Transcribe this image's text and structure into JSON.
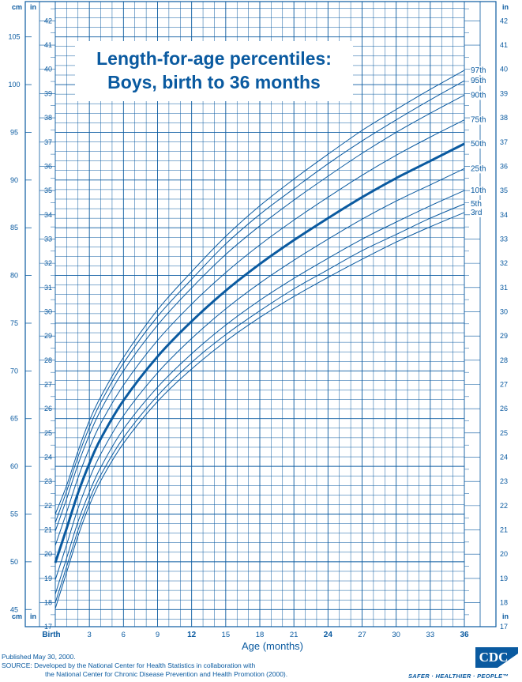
{
  "chart_data": {
    "type": "line",
    "title_line1": "Length-for-age percentiles:",
    "title_line2": "Boys, birth to 36 months",
    "xlabel": "Age (months)",
    "xlim": [
      0,
      36
    ],
    "x_tick_labels": [
      {
        "value": 0,
        "label": "Birth",
        "bold": true
      },
      {
        "value": 3,
        "label": "3",
        "bold": false
      },
      {
        "value": 6,
        "label": "6",
        "bold": false
      },
      {
        "value": 9,
        "label": "9",
        "bold": false
      },
      {
        "value": 12,
        "label": "12",
        "bold": true
      },
      {
        "value": 15,
        "label": "15",
        "bold": false
      },
      {
        "value": 18,
        "label": "18",
        "bold": false
      },
      {
        "value": 21,
        "label": "21",
        "bold": false
      },
      {
        "value": 24,
        "label": "24",
        "bold": true
      },
      {
        "value": 27,
        "label": "27",
        "bold": false
      },
      {
        "value": 30,
        "label": "30",
        "bold": false
      },
      {
        "value": 33,
        "label": "33",
        "bold": false
      },
      {
        "value": 36,
        "label": "36",
        "bold": true
      }
    ],
    "y_cm_label": "cm",
    "y_in_label": "in",
    "y_cm_ticks": [
      45,
      50,
      55,
      60,
      65,
      70,
      75,
      80,
      85,
      90,
      95,
      100,
      105
    ],
    "y_in_ticks": [
      17,
      18,
      19,
      20,
      21,
      22,
      23,
      24,
      25,
      26,
      27,
      28,
      29,
      30,
      31,
      32,
      33,
      34,
      35,
      36,
      37,
      38,
      39,
      40,
      41,
      42
    ],
    "ylim_cm": [
      43.2,
      108.7
    ],
    "x": [
      0,
      1,
      2,
      3,
      4,
      6,
      9,
      12,
      15,
      18,
      21,
      24,
      27,
      30,
      33,
      36
    ],
    "series": [
      {
        "name": "97th",
        "bold": false,
        "values": [
          55.0,
          58.0,
          61.6,
          64.8,
          67.3,
          71.4,
          76.4,
          80.4,
          84.1,
          87.3,
          90.1,
          92.7,
          95.2,
          97.4,
          99.5,
          101.5
        ]
      },
      {
        "name": "95th",
        "bold": false,
        "values": [
          54.1,
          57.4,
          61.0,
          64.1,
          66.7,
          70.8,
          75.7,
          79.6,
          83.3,
          86.4,
          89.1,
          91.7,
          94.1,
          96.3,
          98.4,
          100.4
        ]
      },
      {
        "name": "90th",
        "bold": false,
        "values": [
          53.2,
          56.6,
          60.2,
          63.3,
          65.9,
          70.0,
          74.8,
          78.7,
          82.2,
          85.2,
          87.9,
          90.4,
          92.8,
          95.0,
          97.0,
          98.9
        ]
      },
      {
        "name": "75th",
        "bold": false,
        "values": [
          51.7,
          55.2,
          58.8,
          61.9,
          64.5,
          68.5,
          73.2,
          77.0,
          80.3,
          83.2,
          85.8,
          88.2,
          90.5,
          92.6,
          94.5,
          96.3
        ]
      },
      {
        "name": "50th",
        "bold": true,
        "values": [
          49.9,
          53.5,
          57.2,
          60.3,
          62.9,
          66.9,
          71.5,
          75.2,
          78.4,
          81.2,
          83.7,
          86.0,
          88.2,
          90.2,
          92.0,
          93.8
        ]
      },
      {
        "name": "25th",
        "bold": false,
        "values": [
          48.1,
          51.8,
          55.6,
          58.7,
          61.3,
          65.3,
          69.8,
          73.4,
          76.5,
          79.2,
          81.6,
          83.8,
          85.9,
          87.8,
          89.5,
          91.2
        ]
      },
      {
        "name": "10th",
        "bold": false,
        "values": [
          46.6,
          50.4,
          54.2,
          57.3,
          59.9,
          63.9,
          68.3,
          71.8,
          74.8,
          77.4,
          79.7,
          81.8,
          83.8,
          85.6,
          87.3,
          88.9
        ]
      },
      {
        "name": "5th",
        "bold": false,
        "values": [
          45.7,
          49.5,
          53.3,
          56.5,
          59.1,
          63.0,
          67.4,
          70.9,
          73.8,
          76.3,
          78.6,
          80.6,
          82.6,
          84.3,
          86.0,
          87.5
        ]
      },
      {
        "name": "3rd",
        "bold": false,
        "values": [
          45.1,
          48.9,
          52.7,
          55.9,
          58.5,
          62.4,
          66.8,
          70.2,
          73.1,
          75.6,
          77.8,
          79.8,
          81.7,
          83.5,
          85.1,
          86.6
        ]
      }
    ]
  },
  "footer": {
    "published": "Published May 30, 2000.",
    "source_line1": "SOURCE: Developed by the National Center for Health Statistics in collaboration with",
    "source_line2": "the National Center for Chronic Disease Prevention and Health Promotion (2000)."
  },
  "logo": {
    "mark_text": "CDC",
    "tagline": "SAFER · HEALTHIER · PEOPLE™"
  },
  "colors": {
    "line": "#0a5aa0",
    "background": "#ffffff"
  }
}
